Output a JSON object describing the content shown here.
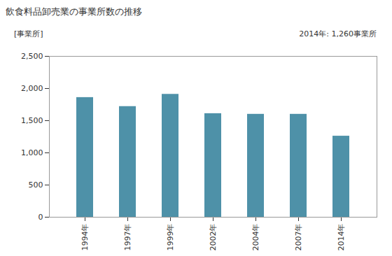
{
  "chart_data": {
    "type": "bar",
    "title": "飲食料品卸売業の事業所数の推移",
    "ylabel": "[事業所]",
    "annotation": "2014年: 1,260事業所",
    "categories": [
      "1994年",
      "1997年",
      "1999年",
      "2002年",
      "2004年",
      "2007年",
      "2014年"
    ],
    "values": [
      1860,
      1720,
      1910,
      1610,
      1600,
      1600,
      1260
    ],
    "color": "#4e91a8",
    "ylim": [
      0,
      2500
    ],
    "yticks": [
      0,
      500,
      {
        "value": 1000,
        "label": "1,000"
      },
      {
        "value": 1500,
        "label": "1,500"
      },
      {
        "value": 2000,
        "label": "2,000"
      },
      {
        "value": 2500,
        "label": "2,500"
      }
    ],
    "grid": false
  }
}
